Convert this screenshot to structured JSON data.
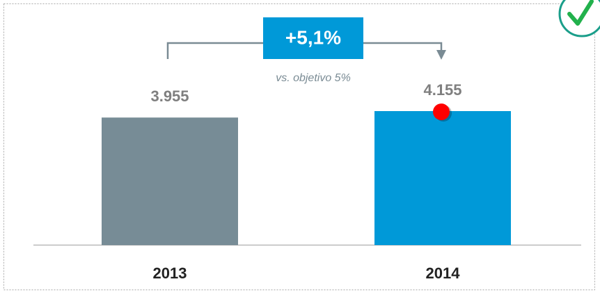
{
  "chart_data": {
    "type": "bar",
    "categories": [
      "2013",
      "2014"
    ],
    "values": [
      3955,
      4155
    ],
    "value_labels": [
      "3.955",
      "4.155"
    ],
    "colors": [
      "#778c96",
      "#0099d8"
    ],
    "target_value": 4153,
    "target_color": "#ff0000",
    "annotations": {
      "change": "+5,1%",
      "note": "vs. objetivo 5%"
    }
  }
}
